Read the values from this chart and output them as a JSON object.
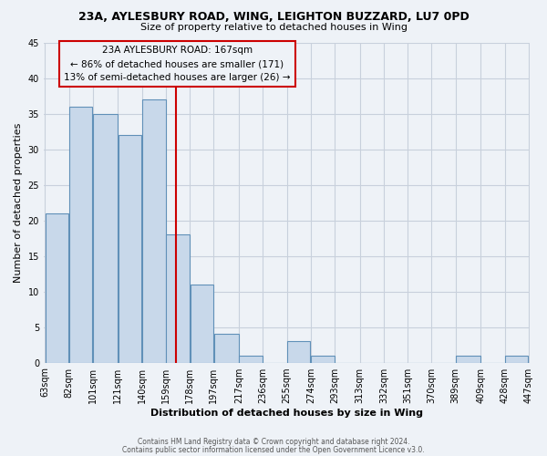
{
  "title": "23A, AYLESBURY ROAD, WING, LEIGHTON BUZZARD, LU7 0PD",
  "subtitle": "Size of property relative to detached houses in Wing",
  "xlabel": "Distribution of detached houses by size in Wing",
  "ylabel": "Number of detached properties",
  "bar_color": "#c8d8ea",
  "bar_edge_color": "#6090b8",
  "bin_edges": [
    63,
    82,
    101,
    121,
    140,
    159,
    178,
    197,
    217,
    236,
    255,
    274,
    293,
    313,
    332,
    351,
    370,
    389,
    409,
    428,
    447
  ],
  "bar_heights": [
    21,
    36,
    35,
    32,
    37,
    18,
    11,
    4,
    1,
    0,
    3,
    1,
    0,
    0,
    0,
    0,
    0,
    1,
    0,
    1
  ],
  "tick_labels": [
    "63sqm",
    "82sqm",
    "101sqm",
    "121sqm",
    "140sqm",
    "159sqm",
    "178sqm",
    "197sqm",
    "217sqm",
    "236sqm",
    "255sqm",
    "274sqm",
    "293sqm",
    "313sqm",
    "332sqm",
    "351sqm",
    "370sqm",
    "389sqm",
    "409sqm",
    "428sqm",
    "447sqm"
  ],
  "ylim": [
    0,
    45
  ],
  "yticks": [
    0,
    5,
    10,
    15,
    20,
    25,
    30,
    35,
    40,
    45
  ],
  "red_line_x": 167,
  "annotation_line1": "23A AYLESBURY ROAD: 167sqm",
  "annotation_line2": "← 86% of detached houses are smaller (171)",
  "annotation_line3": "13% of semi-detached houses are larger (26) →",
  "footer_line1": "Contains HM Land Registry data © Crown copyright and database right 2024.",
  "footer_line2": "Contains public sector information licensed under the Open Government Licence v3.0.",
  "background_color": "#eef2f7",
  "grid_color": "#d0d8e4"
}
